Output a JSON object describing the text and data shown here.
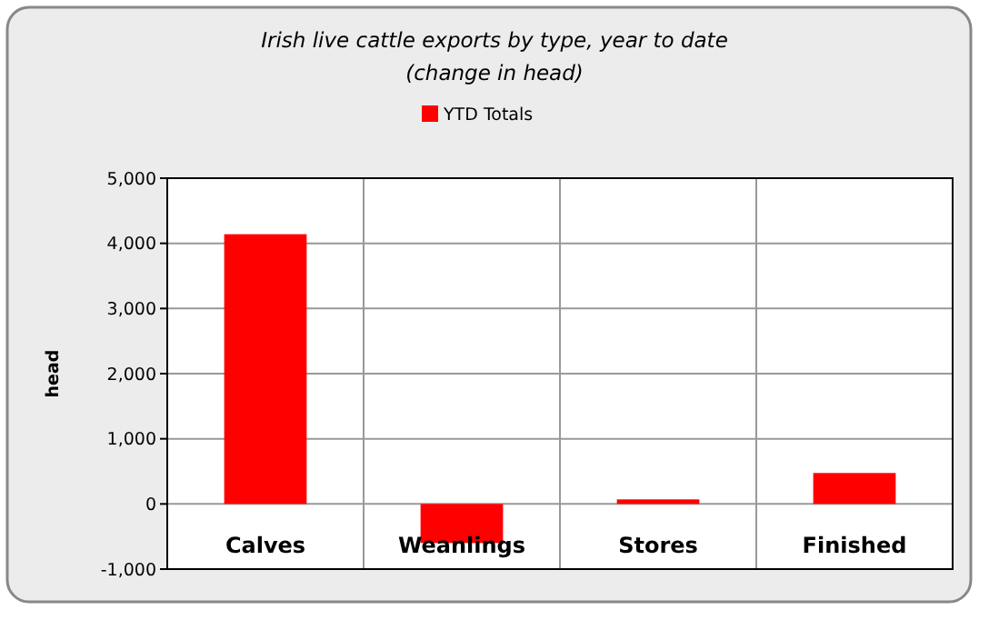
{
  "chart_data": {
    "type": "bar",
    "title": "Irish live cattle exports by type, year to date",
    "subtitle": "(change in head)",
    "ylabel": "head",
    "categories": [
      "Calves",
      "Weanlings",
      "Stores",
      "Finished"
    ],
    "series": [
      {
        "name": "YTD Totals",
        "color": "#ff0000",
        "values": [
          4140,
          -600,
          70,
          475
        ]
      }
    ],
    "ylim": [
      -1000,
      5000
    ],
    "yticks": [
      {
        "value": -1000,
        "label": "-1,000"
      },
      0,
      {
        "value": 1000,
        "label": "1,000"
      },
      {
        "value": 2000,
        "label": "2,000"
      },
      {
        "value": 3000,
        "label": "3,000"
      },
      {
        "value": 4000,
        "label": "4,000"
      },
      {
        "value": 5000,
        "label": "5,000"
      }
    ],
    "grid": true,
    "legend": "top"
  }
}
